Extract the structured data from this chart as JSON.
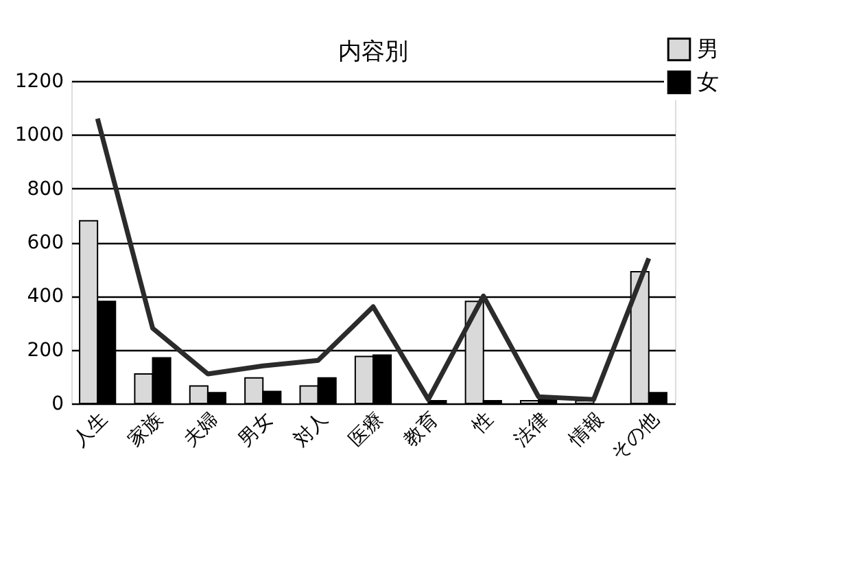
{
  "chart_data": {
    "type": "bar",
    "title": "内容別",
    "categories": [
      "人生",
      "家族",
      "夫婦",
      "男女",
      "対人",
      "医療",
      "教育",
      "性",
      "法律",
      "情報",
      "その他"
    ],
    "series": [
      {
        "name": "男",
        "color": "#d9d9d9",
        "values": [
          680,
          110,
          65,
          95,
          65,
          175,
          null,
          380,
          10,
          10,
          490
        ]
      },
      {
        "name": "女",
        "color": "#000000",
        "values": [
          380,
          170,
          40,
          45,
          95,
          180,
          10,
          10,
          15,
          null,
          40
        ]
      },
      {
        "type": "line",
        "color": "#2b2b2b",
        "values": [
          1060,
          280,
          110,
          140,
          160,
          360,
          15,
          400,
          25,
          15,
          540
        ]
      }
    ],
    "ylim": [
      0,
      1200
    ],
    "yticks": [
      0,
      200,
      400,
      600,
      800,
      1000,
      1200
    ],
    "grid": "y",
    "legend": "top right",
    "marker": "none",
    "line_style": "solid"
  }
}
